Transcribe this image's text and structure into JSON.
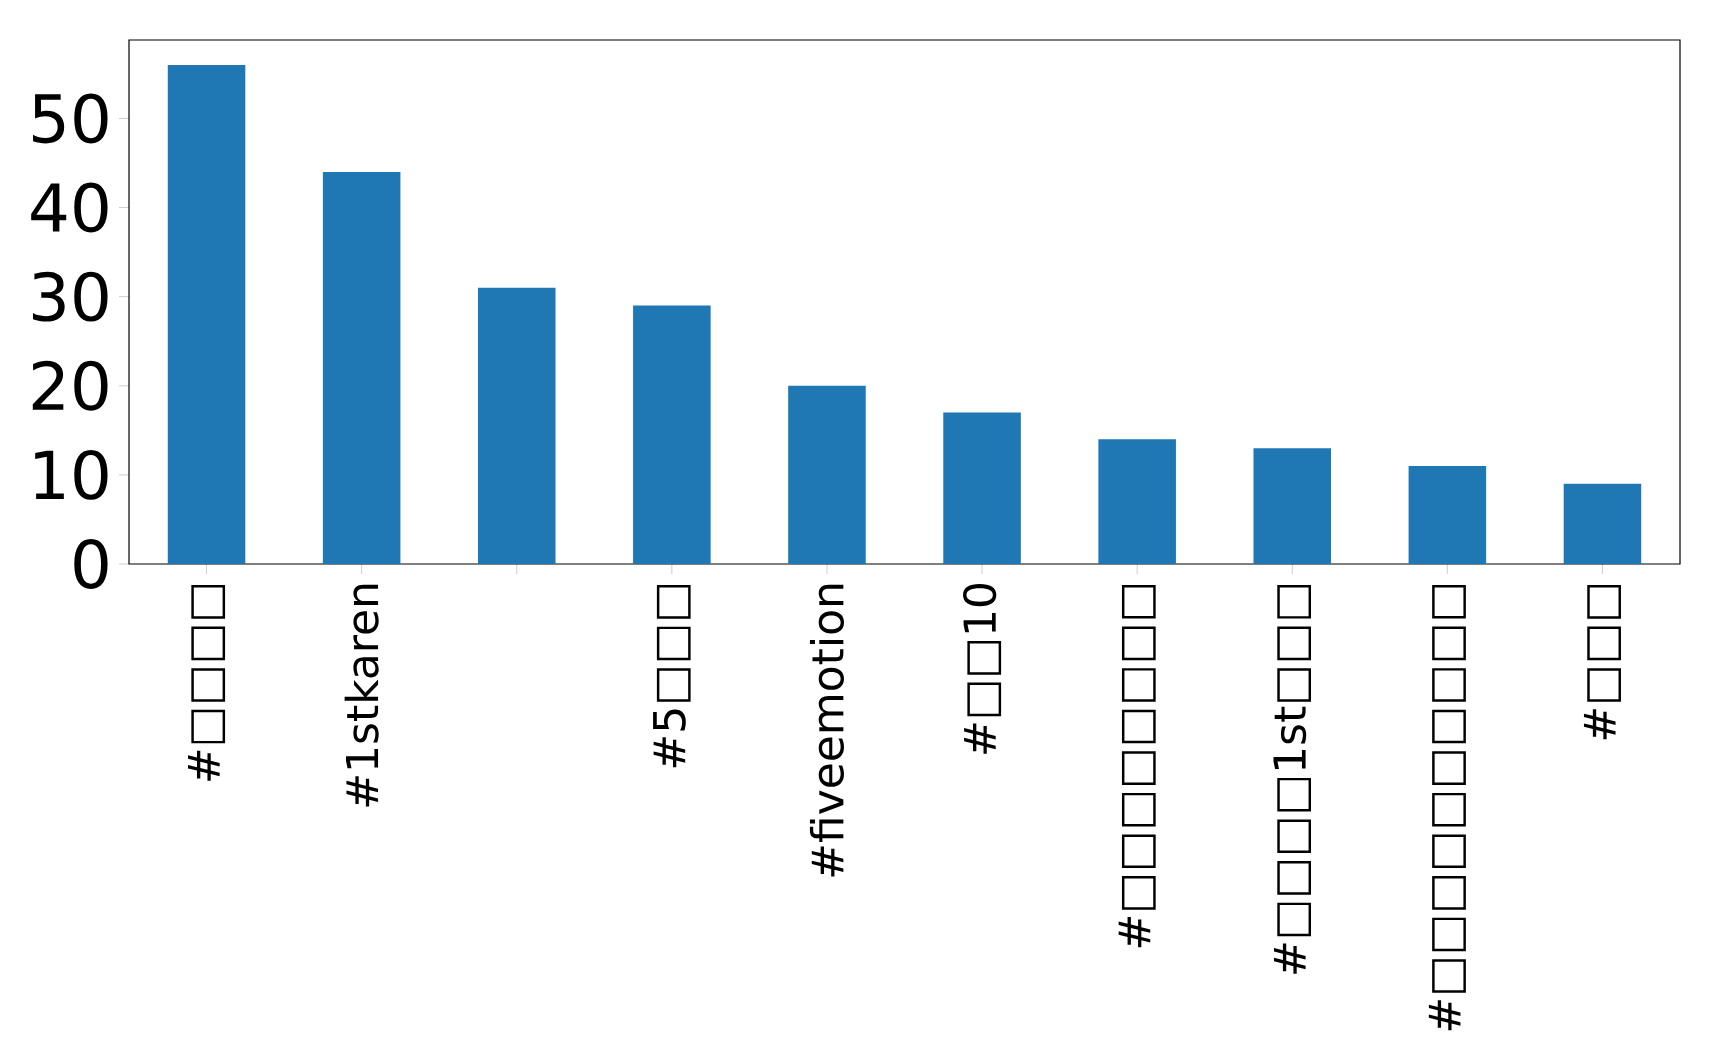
{
  "chart_data": {
    "type": "bar",
    "categories": [
      "#□□□□",
      "#1stkaren",
      null,
      "#5□□□",
      "#fiveemotion",
      "#□□10",
      "#□□□□□□□□",
      "#□□□□1st□□□",
      "#□□□□□□□□□□",
      "#□□□"
    ],
    "values": [
      56,
      44,
      31,
      29,
      20,
      17,
      14,
      13,
      11,
      9
    ],
    "color": "#1f77b4",
    "ylim": [
      0,
      58.8
    ],
    "yticks": [
      0,
      10,
      20,
      30,
      40,
      50
    ]
  }
}
